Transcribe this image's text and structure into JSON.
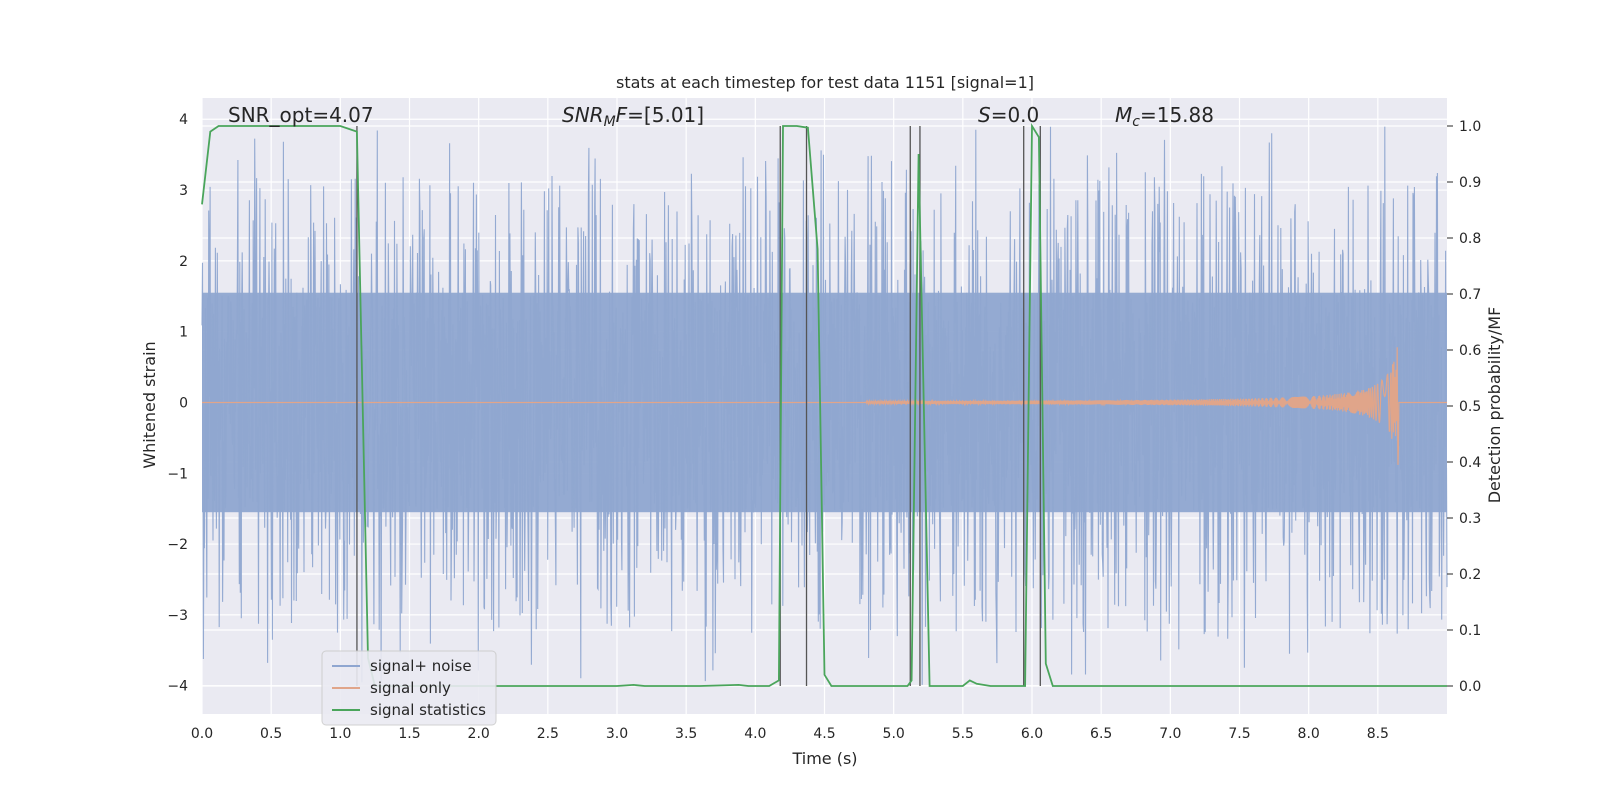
{
  "chart_data": {
    "type": "line",
    "title": "stats at each timestep for test data 1151 [signal=1]",
    "xlabel": "Time (s)",
    "ylabel_left": "Whitened strain",
    "ylabel_right": "Detection probability/MF",
    "xlim": [
      0.0,
      9.0
    ],
    "ylim_left": [
      -4.4,
      4.3
    ],
    "ylim_right": [
      -0.05,
      1.05
    ],
    "x_ticks": [
      "0.0",
      "0.5",
      "1.0",
      "1.5",
      "2.0",
      "2.5",
      "3.0",
      "3.5",
      "4.0",
      "4.5",
      "5.0",
      "5.5",
      "6.0",
      "6.5",
      "7.0",
      "7.5",
      "8.0",
      "8.5"
    ],
    "y_ticks_left": [
      "−4",
      "−3",
      "−2",
      "−1",
      "0",
      "1",
      "2",
      "3",
      "4"
    ],
    "y_ticks_right": [
      "0.0",
      "0.1",
      "0.2",
      "0.3",
      "0.4",
      "0.5",
      "0.6",
      "0.7",
      "0.8",
      "0.9",
      "1.0"
    ],
    "grid": true,
    "legend_position": "lower-left",
    "annotations": [
      {
        "text": "SNR_opt=4.07",
        "x": 0.2,
        "y": 4.0
      },
      {
        "text": "SNR_MF=[5.01]",
        "x": 2.6,
        "y": 4.0
      },
      {
        "text": "S=0.0",
        "x": 5.6,
        "y": 4.0
      },
      {
        "text": "M_c=15.88",
        "x": 6.6,
        "y": 4.0
      }
    ],
    "series": [
      {
        "name": "signal+ noise",
        "color": "#8fa6d0",
        "description_axis": "left",
        "noise_envelope": {
          "band_low": -1.55,
          "band_high": 1.55,
          "spike_max": 3.9,
          "spike_min": -4.0
        }
      },
      {
        "name": "signal only",
        "color": "#e0a58a",
        "axis": "left",
        "chirp": {
          "start": 4.8,
          "merger": 8.65,
          "peak_amplitude": 0.95
        }
      },
      {
        "name": "signal statistics",
        "color": "#4aa55b",
        "axis": "right",
        "x": [
          0.0,
          0.06,
          0.12,
          0.2,
          0.4,
          0.6,
          0.8,
          1.0,
          1.12,
          1.2,
          1.25,
          1.4,
          2.0,
          2.6,
          3.0,
          3.12,
          3.2,
          3.6,
          3.88,
          3.95,
          4.1,
          4.17,
          4.2,
          4.25,
          4.3,
          4.38,
          4.45,
          4.5,
          4.55,
          4.7,
          4.9,
          5.1,
          5.13,
          5.18,
          5.26,
          5.3,
          5.5,
          5.55,
          5.6,
          5.7,
          5.85,
          5.95,
          6.0,
          6.05,
          6.1,
          6.15,
          6.2,
          6.4,
          7.0,
          8.0,
          9.0
        ],
        "values": [
          0.86,
          0.99,
          1.0,
          1.0,
          1.0,
          1.0,
          1.0,
          1.0,
          0.99,
          0.05,
          0.0,
          0.0,
          0.0,
          0.0,
          0.0,
          0.002,
          0.0,
          0.0,
          0.002,
          0.0,
          0.0,
          0.01,
          1.0,
          1.0,
          1.0,
          0.997,
          0.78,
          0.02,
          0.0,
          0.0,
          0.0,
          0.0,
          0.01,
          0.95,
          0.0,
          0.0,
          0.0,
          0.01,
          0.004,
          0.0,
          0.0,
          0.0,
          1.0,
          0.98,
          0.04,
          0.0,
          0.0,
          0.0,
          0.0,
          0.0,
          0.0
        ]
      }
    ],
    "vertical_markers": [
      1.12,
      4.18,
      4.37,
      5.12,
      5.19,
      5.94,
      6.06
    ]
  }
}
